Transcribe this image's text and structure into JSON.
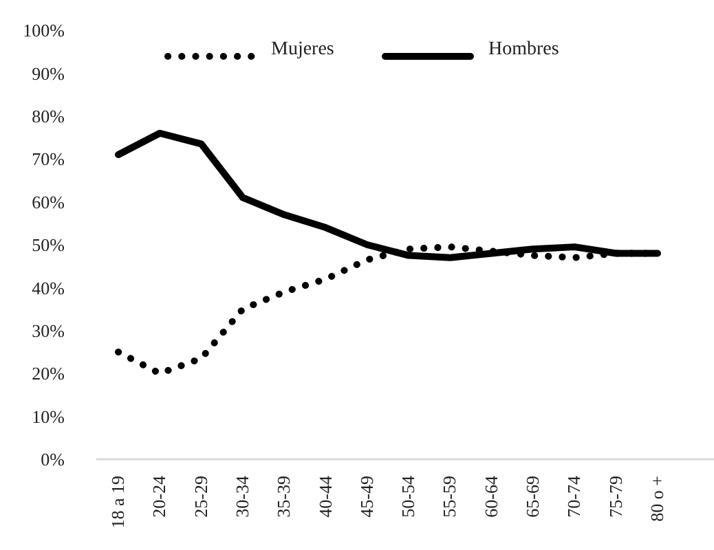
{
  "chart_data": {
    "type": "line",
    "categories": [
      "18 a 19",
      "20-24",
      "25-29",
      "30-34",
      "35-39",
      "40-44",
      "45-49",
      "50-54",
      "55-59",
      "60-64",
      "65-69",
      "70-74",
      "75-79",
      "80 o +"
    ],
    "series": [
      {
        "name": "Mujeres",
        "color": "#000000",
        "line_style": "dotted",
        "values": [
          25,
          20,
          23.5,
          35,
          39,
          42,
          46.5,
          49,
          49.5,
          48.5,
          47.5,
          47,
          48,
          48
        ]
      },
      {
        "name": "Hombres",
        "color": "#000000",
        "line_style": "solid",
        "values": [
          71,
          76,
          73.5,
          61,
          57,
          54,
          50,
          47.5,
          47,
          48,
          49,
          49.5,
          48,
          48
        ]
      }
    ],
    "ylim": [
      0,
      100
    ],
    "yticks": [
      {
        "value": 0,
        "label": "0%"
      },
      {
        "value": 10,
        "label": "10%"
      },
      {
        "value": 20,
        "label": "20%"
      },
      {
        "value": 30,
        "label": "30%"
      },
      {
        "value": 40,
        "label": "40%"
      },
      {
        "value": 50,
        "label": "50%"
      },
      {
        "value": 60,
        "label": "60%"
      },
      {
        "value": 70,
        "label": "70%"
      },
      {
        "value": 80,
        "label": "80%"
      },
      {
        "value": 90,
        "label": "90%"
      },
      {
        "value": 100,
        "label": "100%"
      }
    ],
    "legend": "top",
    "grid": false
  }
}
